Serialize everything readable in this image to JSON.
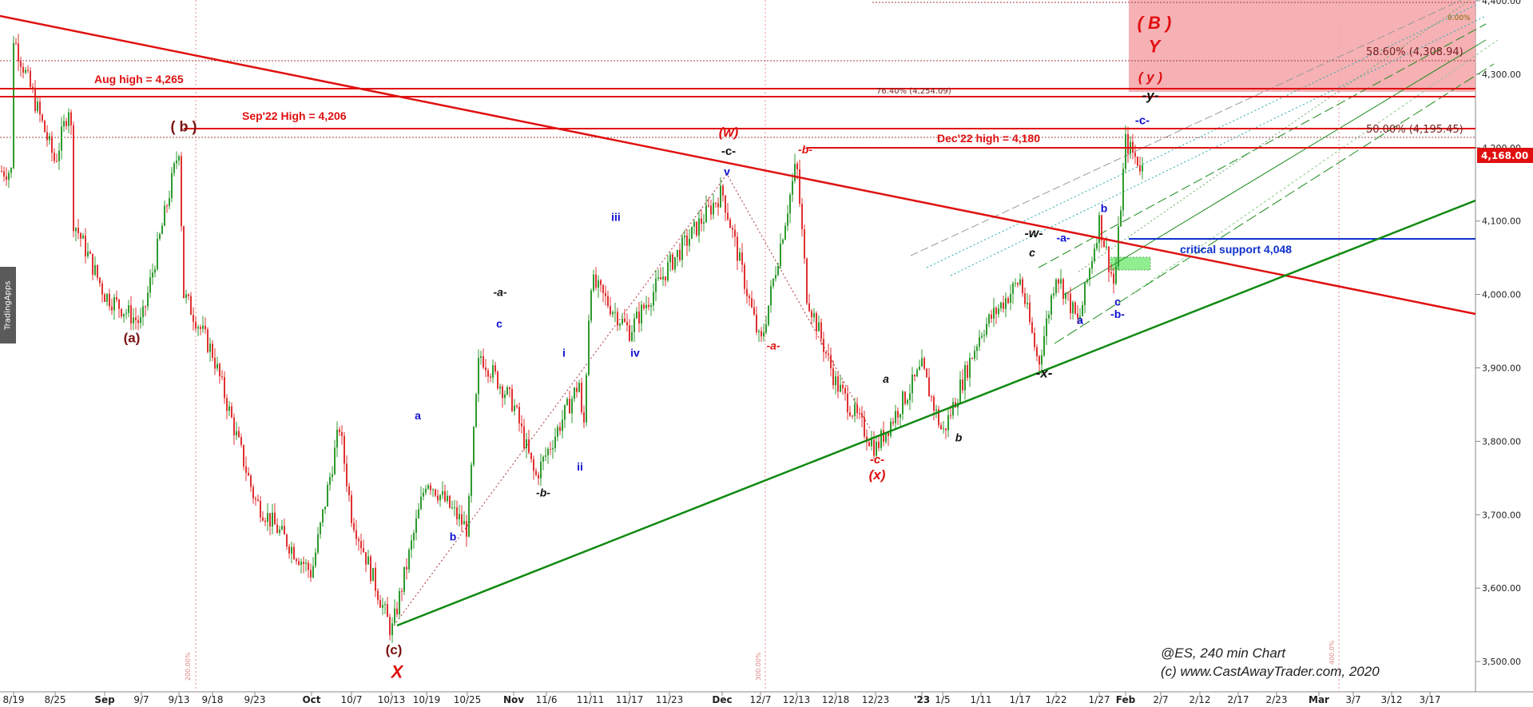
{
  "side_tab": "TradingApps",
  "credit": {
    "line1": "@ES, 240 min Chart",
    "line2": "(c) www.CastAwayTrader.com, 2020"
  },
  "colors": {
    "up_candle": "#2e9a2e",
    "down_candle": "#e03030",
    "resistance": "#e01010",
    "support_trend": "#108a10",
    "critical_support": "#1030d0",
    "target_zone": "#f5a3a8",
    "label_black": "#111111",
    "label_blue": "#1010d0",
    "label_red": "#e01010",
    "label_maroon": "#7a1010"
  },
  "chart_data": {
    "type": "candlestick",
    "symbol": "@ES",
    "timeframe": "240 min",
    "ylim": [
      3470,
      4400
    ],
    "y_ticks": [
      3500,
      3600,
      3700,
      3800,
      3900,
      4000,
      4100,
      4200,
      4300,
      4400
    ],
    "y_tick_labels": [
      "3,500.00",
      "3,600.00",
      "3,700.00",
      "3,800.00",
      "3,900.00",
      "4,000.00",
      "4,100.00",
      "4,200.00",
      "4,300.00",
      "4,400.00"
    ],
    "x_tick_labels": [
      "8/19",
      "8/25",
      "Sep",
      "9/7",
      "9/13",
      "9/18",
      "9/23",
      "Oct",
      "10/7",
      "10/13",
      "10/19",
      "10/25",
      "Nov",
      "11/6",
      "11/11",
      "11/17",
      "11/23",
      "Dec",
      "12/7",
      "12/13",
      "12/18",
      "12/23",
      "'23",
      "1/5",
      "1/11",
      "1/17",
      "1/22",
      "1/27",
      "Feb",
      "2/7",
      "2/12",
      "2/17",
      "2/23",
      "Mar",
      "3/7",
      "3/12",
      "3/17"
    ],
    "last_price": "4,168.00",
    "price_path": [
      [
        "8/19",
        4350
      ],
      [
        "8/25",
        4180
      ],
      [
        "8/29",
        4265
      ],
      [
        "8/30",
        4100
      ],
      [
        "Sep",
        4000
      ],
      [
        "9/7",
        3960
      ],
      [
        "9/13",
        4200
      ],
      [
        "9/14",
        4000
      ],
      [
        "9/18",
        3920
      ],
      [
        "9/23",
        3720
      ],
      [
        "Oct",
        3620
      ],
      [
        "10/5",
        3820
      ],
      [
        "10/7",
        3700
      ],
      [
        "10/13",
        3540
      ],
      [
        "10/19",
        3750
      ],
      [
        "10/25",
        3680
      ],
      [
        "10/27",
        3920
      ],
      [
        "Nov",
        3850
      ],
      [
        "11/4",
        3750
      ],
      [
        "11/9",
        3880
      ],
      [
        "11/10",
        3800
      ],
      [
        "11/11",
        4020
      ],
      [
        "11/17",
        3950
      ],
      [
        "11/23",
        4040
      ],
      [
        "Dec",
        4140
      ],
      [
        "12/7",
        3930
      ],
      [
        "12/13",
        4180
      ],
      [
        "12/15",
        4000
      ],
      [
        "12/18",
        3880
      ],
      [
        "12/23",
        3790
      ],
      [
        "'23",
        3900
      ],
      [
        "1/5",
        3810
      ],
      [
        "1/11",
        3950
      ],
      [
        "1/17",
        4020
      ],
      [
        "1/19",
        3905
      ],
      [
        "1/22",
        4030
      ],
      [
        "1/24",
        3960
      ],
      [
        "1/27",
        4100
      ],
      [
        "1/31",
        4010
      ],
      [
        "Feb",
        4208
      ],
      [
        "2/2",
        4168
      ]
    ],
    "horizontal_levels": [
      {
        "label": "Aug high = 4,265",
        "value": 4265
      },
      {
        "label": "Sep'22 High = 4,206",
        "value": 4206
      },
      {
        "label": "Dec'22 high = 4,180",
        "value": 4180
      },
      {
        "label": "critical support 4,048",
        "value": 4048
      }
    ],
    "fib_levels": [
      {
        "label": "58.60% (4,308.94)",
        "value": 4309
      },
      {
        "label": "76.40% (4,254.09)",
        "value": 4254
      },
      {
        "label": "50.00% (4,195.45)",
        "value": 4195
      },
      {
        "label": "0.00%",
        "value": 4385
      }
    ],
    "trendlines": [
      {
        "name": "resistance",
        "from": [
          "8/19",
          4380
        ],
        "to": [
          "3/17",
          3945
        ]
      },
      {
        "name": "support",
        "from": [
          "10/13",
          3540
        ],
        "to": [
          "3/17",
          4100
        ]
      }
    ],
    "target_zone": {
      "top": 4400,
      "bottom": 4258
    },
    "wave_labels": [
      {
        "text": "(a)",
        "x": "Sep",
        "y": 3935,
        "color": "maroon"
      },
      {
        "text": "( b )",
        "x": "9/13",
        "y": 4222,
        "color": "maroon"
      },
      {
        "text": "(c)",
        "x": "10/13",
        "y": 3510,
        "color": "maroon"
      },
      {
        "text": "X",
        "x": "10/13",
        "y": 3478,
        "color": "red"
      },
      {
        "text": "a",
        "x": "10/25",
        "y": 3830,
        "color": "blue"
      },
      {
        "text": "b",
        "x": "10/25",
        "y": 3665,
        "color": "blue"
      },
      {
        "text": "c",
        "x": "10/25",
        "y": 3955,
        "color": "blue"
      },
      {
        "text": "-a-",
        "x": "10/25",
        "y": 3998,
        "color": "black"
      },
      {
        "text": "-b-",
        "x": "11/6",
        "y": 3725,
        "color": "black"
      },
      {
        "text": "i",
        "x": "11/6",
        "y": 3915,
        "color": "blue"
      },
      {
        "text": "ii",
        "x": "11/11",
        "y": 3760,
        "color": "blue"
      },
      {
        "text": "iii",
        "x": "11/11",
        "y": 4100,
        "color": "blue"
      },
      {
        "text": "iv",
        "x": "11/17",
        "y": 3915,
        "color": "blue"
      },
      {
        "text": "v",
        "x": "Dec",
        "y": 4162,
        "color": "blue"
      },
      {
        "text": "-c-",
        "x": "Dec",
        "y": 4190,
        "color": "black"
      },
      {
        "text": "(w)",
        "x": "Dec",
        "y": 4215,
        "color": "red"
      },
      {
        "text": "-b-",
        "x": "12/13",
        "y": 4192,
        "color": "red"
      },
      {
        "text": "-a-",
        "x": "12/7",
        "y": 3925,
        "color": "red"
      },
      {
        "text": "-c-",
        "x": "12/23",
        "y": 3770,
        "color": "red"
      },
      {
        "text": "(x)",
        "x": "12/23",
        "y": 3748,
        "color": "red"
      },
      {
        "text": "a",
        "x": "12/23",
        "y": 3880,
        "color": "black"
      },
      {
        "text": "b",
        "x": "1/5",
        "y": 3800,
        "color": "black"
      },
      {
        "text": "-x-",
        "x": "1/17",
        "y": 3887,
        "color": "black"
      },
      {
        "text": "c",
        "x": "1/22",
        "y": 4052,
        "color": "black"
      },
      {
        "text": "-w-",
        "x": "1/22",
        "y": 4078,
        "color": "black"
      },
      {
        "text": "-a-",
        "x": "1/22",
        "y": 4072,
        "color": "blue"
      },
      {
        "text": "a",
        "x": "1/22",
        "y": 3960,
        "color": "blue"
      },
      {
        "text": "b",
        "x": "1/27",
        "y": 4112,
        "color": "blue"
      },
      {
        "text": "c",
        "x": "Feb",
        "y": 3985,
        "color": "blue"
      },
      {
        "text": "-b-",
        "x": "Feb",
        "y": 3968,
        "color": "blue"
      },
      {
        "text": "-c-",
        "x": "Feb",
        "y": 4232,
        "color": "blue"
      },
      {
        "text": "-y-",
        "x": "Feb",
        "y": 4265,
        "color": "black"
      },
      {
        "text": "( y )",
        "x": "Feb",
        "y": 4290,
        "color": "red"
      },
      {
        "text": "Y",
        "x": "Feb",
        "y": 4330,
        "color": "red"
      },
      {
        "text": "( B )",
        "x": "Feb",
        "y": 4362,
        "color": "red"
      }
    ],
    "vertical_markers": [
      "200.00%",
      "300.00%",
      "400.0%"
    ]
  }
}
